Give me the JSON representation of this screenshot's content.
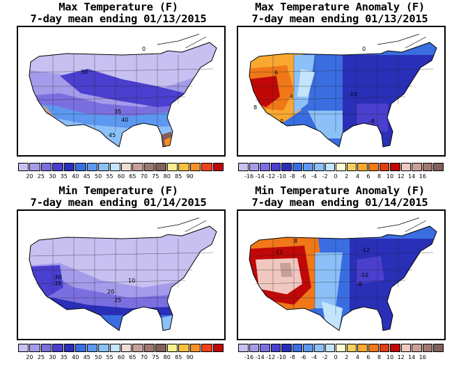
{
  "panels": [
    {
      "title1": "Max Temperature (F)",
      "title2": "7-day mean ending 01/13/2015",
      "labels": [
        "0",
        "30",
        "35",
        "40",
        "45"
      ],
      "colorbar": {
        "colors": [
          "#c8c0f0",
          "#a49bea",
          "#7b6fe0",
          "#4a3fcf",
          "#2a2fb8",
          "#3a6ee0",
          "#5c98f0",
          "#8cc0f8",
          "#c4e4fc",
          "#f0dcd4",
          "#c8a098",
          "#a07870",
          "#806058",
          "#f8f090",
          "#f8c040",
          "#f89028",
          "#f04018",
          "#c00808"
        ],
        "ticks": [
          "20",
          "25",
          "30",
          "35",
          "40",
          "45",
          "50",
          "55",
          "60",
          "65",
          "70",
          "75",
          "80",
          "85",
          "90"
        ]
      }
    },
    {
      "title1": "Max Temperature Anomaly (F)",
      "title2": "7-day mean ending 01/13/2015",
      "labels": [
        "0",
        "8",
        "4",
        "6",
        "-10",
        "-8",
        "0"
      ],
      "colorbar": {
        "colors": [
          "#c8c0f0",
          "#a49bea",
          "#7b6fe0",
          "#4a3fcf",
          "#2a2fb8",
          "#3a6ee0",
          "#5c98f0",
          "#8cc0f8",
          "#c4e4fc",
          "#fcfcd0",
          "#f8d060",
          "#f8a830",
          "#f07818",
          "#e04010",
          "#c00808",
          "#f0c8c0",
          "#c8a098",
          "#a07870",
          "#806058"
        ],
        "ticks": [
          "-16",
          "-14",
          "-12",
          "-10",
          "-8",
          "-6",
          "-4",
          "-2",
          "0",
          "2",
          "4",
          "6",
          "8",
          "10",
          "12",
          "14",
          "16"
        ]
      }
    },
    {
      "title1": "Min Temperature (F)",
      "title2": "7-day mean ending 01/14/2015",
      "labels": [
        "30",
        "35",
        "10",
        "20",
        "25"
      ],
      "colorbar": {
        "colors": [
          "#c8c0f0",
          "#a49bea",
          "#7b6fe0",
          "#4a3fcf",
          "#2a2fb8",
          "#3a6ee0",
          "#5c98f0",
          "#8cc0f8",
          "#c4e4fc",
          "#f0dcd4",
          "#c8a098",
          "#a07870",
          "#806058",
          "#f8f090",
          "#f8c040",
          "#f89028",
          "#f04018",
          "#c00808"
        ],
        "ticks": [
          "20",
          "25",
          "30",
          "35",
          "40",
          "45",
          "50",
          "55",
          "60",
          "65",
          "70",
          "75",
          "80",
          "85",
          "90"
        ]
      }
    },
    {
      "title1": "Min Temperature Anomaly (F)",
      "title2": "7-day mean ending 01/14/2015",
      "labels": [
        "12",
        "8",
        "-12",
        "-10",
        "-8"
      ],
      "colorbar": {
        "colors": [
          "#c8c0f0",
          "#a49bea",
          "#7b6fe0",
          "#4a3fcf",
          "#2a2fb8",
          "#3a6ee0",
          "#5c98f0",
          "#8cc0f8",
          "#c4e4fc",
          "#fcfcd0",
          "#f8d060",
          "#f8a830",
          "#f07818",
          "#e04010",
          "#c00808",
          "#f0c8c0",
          "#c8a098",
          "#a07870",
          "#806058"
        ],
        "ticks": [
          "-16",
          "-14",
          "-12",
          "-10",
          "-8",
          "-6",
          "-4",
          "-2",
          "0",
          "2",
          "4",
          "6",
          "8",
          "10",
          "12",
          "14",
          "16"
        ]
      }
    }
  ]
}
